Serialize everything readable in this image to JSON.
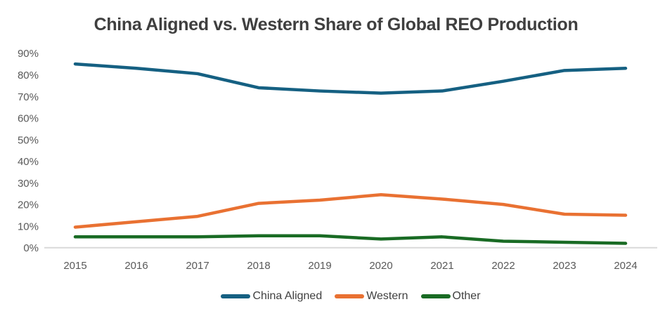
{
  "title": "China Aligned vs. Western Share of Global REO Production",
  "colors": {
    "background": "#FFFFFF",
    "title_text": "#3F3F3F",
    "tick_text": "#595959",
    "legend_text": "#404040",
    "axis_line": "#D9D9D9"
  },
  "chart_data": {
    "type": "line",
    "title": "China Aligned vs. Western Share of Global REO Production",
    "categories": [
      "2015",
      "2016",
      "2017",
      "2018",
      "2019",
      "2020",
      "2021",
      "2022",
      "2023",
      "2024"
    ],
    "series": [
      {
        "name": "China Aligned",
        "color": "#156082",
        "values": [
          85,
          83,
          80.5,
          74,
          72.5,
          71.5,
          72.5,
          77,
          82,
          83
        ]
      },
      {
        "name": "Western",
        "color": "#E97132",
        "values": [
          9.5,
          12,
          14.5,
          20.5,
          22,
          24.5,
          22.5,
          20,
          15.5,
          15
        ]
      },
      {
        "name": "Other",
        "color": "#196B24",
        "values": [
          5,
          5,
          5,
          5.5,
          5.5,
          4,
          5,
          3,
          2.5,
          2
        ]
      }
    ],
    "xlabel": "",
    "ylabel": "",
    "ylim": [
      0,
      90
    ],
    "ytick_step": 10,
    "ytick_format": "percent",
    "grid": false,
    "legend_position": "bottom"
  }
}
